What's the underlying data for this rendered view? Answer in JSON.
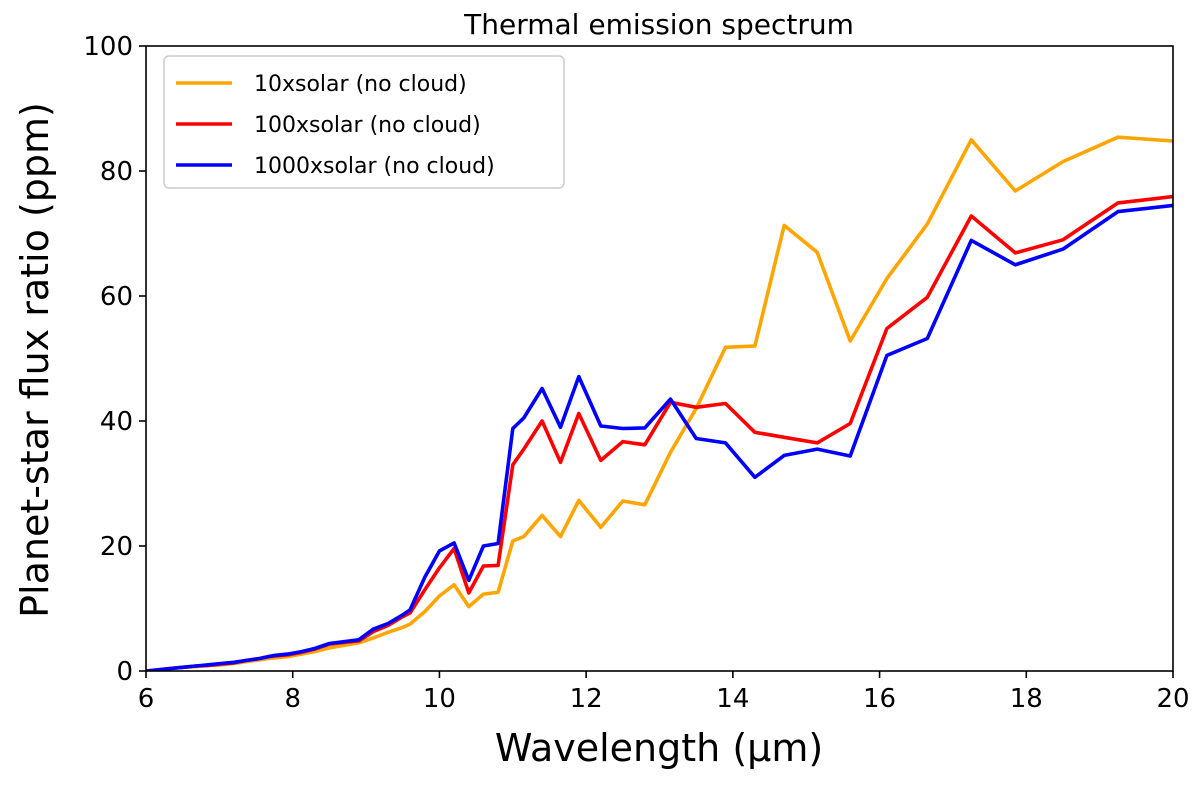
{
  "chart_data": {
    "type": "line",
    "title": "Thermal emission spectrum",
    "xlabel": "Wavelength (μm)",
    "ylabel": "Planet-star flux ratio (ppm)",
    "xlim": [
      6,
      20
    ],
    "ylim": [
      0,
      100
    ],
    "xticks": [
      6,
      8,
      10,
      12,
      14,
      16,
      18,
      20
    ],
    "yticks": [
      0,
      20,
      40,
      60,
      80,
      100
    ],
    "grid": false,
    "legend_position": "top-left",
    "series": [
      {
        "name": "10xsolar (no cloud)",
        "color": "#ffa500",
        "x": [
          6.0,
          6.17,
          6.33,
          6.5,
          6.68,
          6.85,
          7.02,
          7.2,
          7.37,
          7.55,
          7.67,
          7.75,
          7.93,
          8.12,
          8.3,
          8.5,
          8.7,
          8.9,
          9.1,
          9.3,
          9.5,
          9.6,
          9.8,
          10.0,
          10.2,
          10.4,
          10.6,
          10.8,
          11.0,
          11.15,
          11.4,
          11.65,
          11.9,
          12.2,
          12.5,
          12.8,
          13.15,
          13.5,
          13.9,
          14.3,
          14.7,
          15.15,
          15.6,
          16.1,
          16.65,
          17.25,
          17.85,
          18.5,
          19.25,
          20.0
        ],
        "y": [
          0.0,
          0.2,
          0.4,
          0.6,
          0.7,
          0.9,
          1.0,
          1.2,
          1.5,
          1.8,
          2.0,
          2.1,
          2.3,
          2.7,
          3.1,
          3.7,
          4.1,
          4.5,
          5.3,
          6.2,
          7.0,
          7.5,
          9.5,
          12.0,
          13.8,
          10.3,
          12.3,
          12.6,
          20.8,
          21.5,
          24.9,
          21.5,
          27.3,
          23.0,
          27.2,
          26.6,
          35.0,
          42.0,
          51.8,
          52.0,
          71.3,
          67.0,
          52.8,
          62.8,
          71.5,
          85.0,
          76.8,
          81.5,
          85.4,
          84.8
        ]
      },
      {
        "name": "100xsolar (no cloud)",
        "color": "#ff0000",
        "x": [
          6.0,
          6.17,
          6.33,
          6.5,
          6.68,
          6.85,
          7.02,
          7.2,
          7.37,
          7.55,
          7.67,
          7.75,
          7.93,
          8.12,
          8.3,
          8.5,
          8.7,
          8.9,
          9.1,
          9.3,
          9.5,
          9.6,
          9.8,
          10.0,
          10.2,
          10.4,
          10.6,
          10.8,
          11.0,
          11.15,
          11.4,
          11.65,
          11.9,
          12.2,
          12.5,
          12.8,
          13.15,
          13.5,
          13.9,
          14.3,
          14.7,
          15.15,
          15.6,
          16.1,
          16.65,
          17.25,
          17.85,
          18.5,
          19.25,
          20.0
        ],
        "y": [
          0.0,
          0.2,
          0.4,
          0.6,
          0.8,
          0.9,
          1.1,
          1.3,
          1.7,
          2.0,
          2.3,
          2.4,
          2.6,
          3.0,
          3.5,
          4.3,
          4.6,
          4.8,
          6.3,
          7.3,
          8.7,
          9.3,
          13.0,
          16.5,
          19.6,
          12.5,
          16.8,
          16.9,
          33.0,
          35.5,
          40.0,
          33.4,
          41.2,
          33.7,
          36.7,
          36.2,
          43.0,
          42.2,
          42.8,
          38.2,
          37.4,
          36.5,
          39.6,
          54.8,
          59.8,
          72.8,
          66.9,
          69.0,
          74.9,
          75.9
        ]
      },
      {
        "name": "1000xsolar (no cloud)",
        "color": "#0000ff",
        "x": [
          6.0,
          6.17,
          6.33,
          6.5,
          6.68,
          6.85,
          7.02,
          7.2,
          7.37,
          7.55,
          7.67,
          7.75,
          7.93,
          8.12,
          8.3,
          8.5,
          8.7,
          8.9,
          9.1,
          9.3,
          9.5,
          9.6,
          9.8,
          10.0,
          10.2,
          10.4,
          10.6,
          10.8,
          11.0,
          11.15,
          11.4,
          11.65,
          11.9,
          12.2,
          12.5,
          12.8,
          13.15,
          13.5,
          13.9,
          14.3,
          14.7,
          15.15,
          15.6,
          16.1,
          16.65,
          17.25,
          17.85,
          18.5,
          19.25,
          20.0
        ],
        "y": [
          0.0,
          0.2,
          0.4,
          0.6,
          0.8,
          1.0,
          1.2,
          1.4,
          1.7,
          2.0,
          2.3,
          2.5,
          2.7,
          3.1,
          3.6,
          4.4,
          4.7,
          5.0,
          6.7,
          7.6,
          9.0,
          9.8,
          15.0,
          19.2,
          20.5,
          14.5,
          20.0,
          20.4,
          38.8,
          40.5,
          45.2,
          39.0,
          47.1,
          39.2,
          38.8,
          38.9,
          43.5,
          37.2,
          36.5,
          31.0,
          34.5,
          35.5,
          34.4,
          50.5,
          53.2,
          68.9,
          65.0,
          67.5,
          73.5,
          74.5
        ]
      }
    ]
  }
}
